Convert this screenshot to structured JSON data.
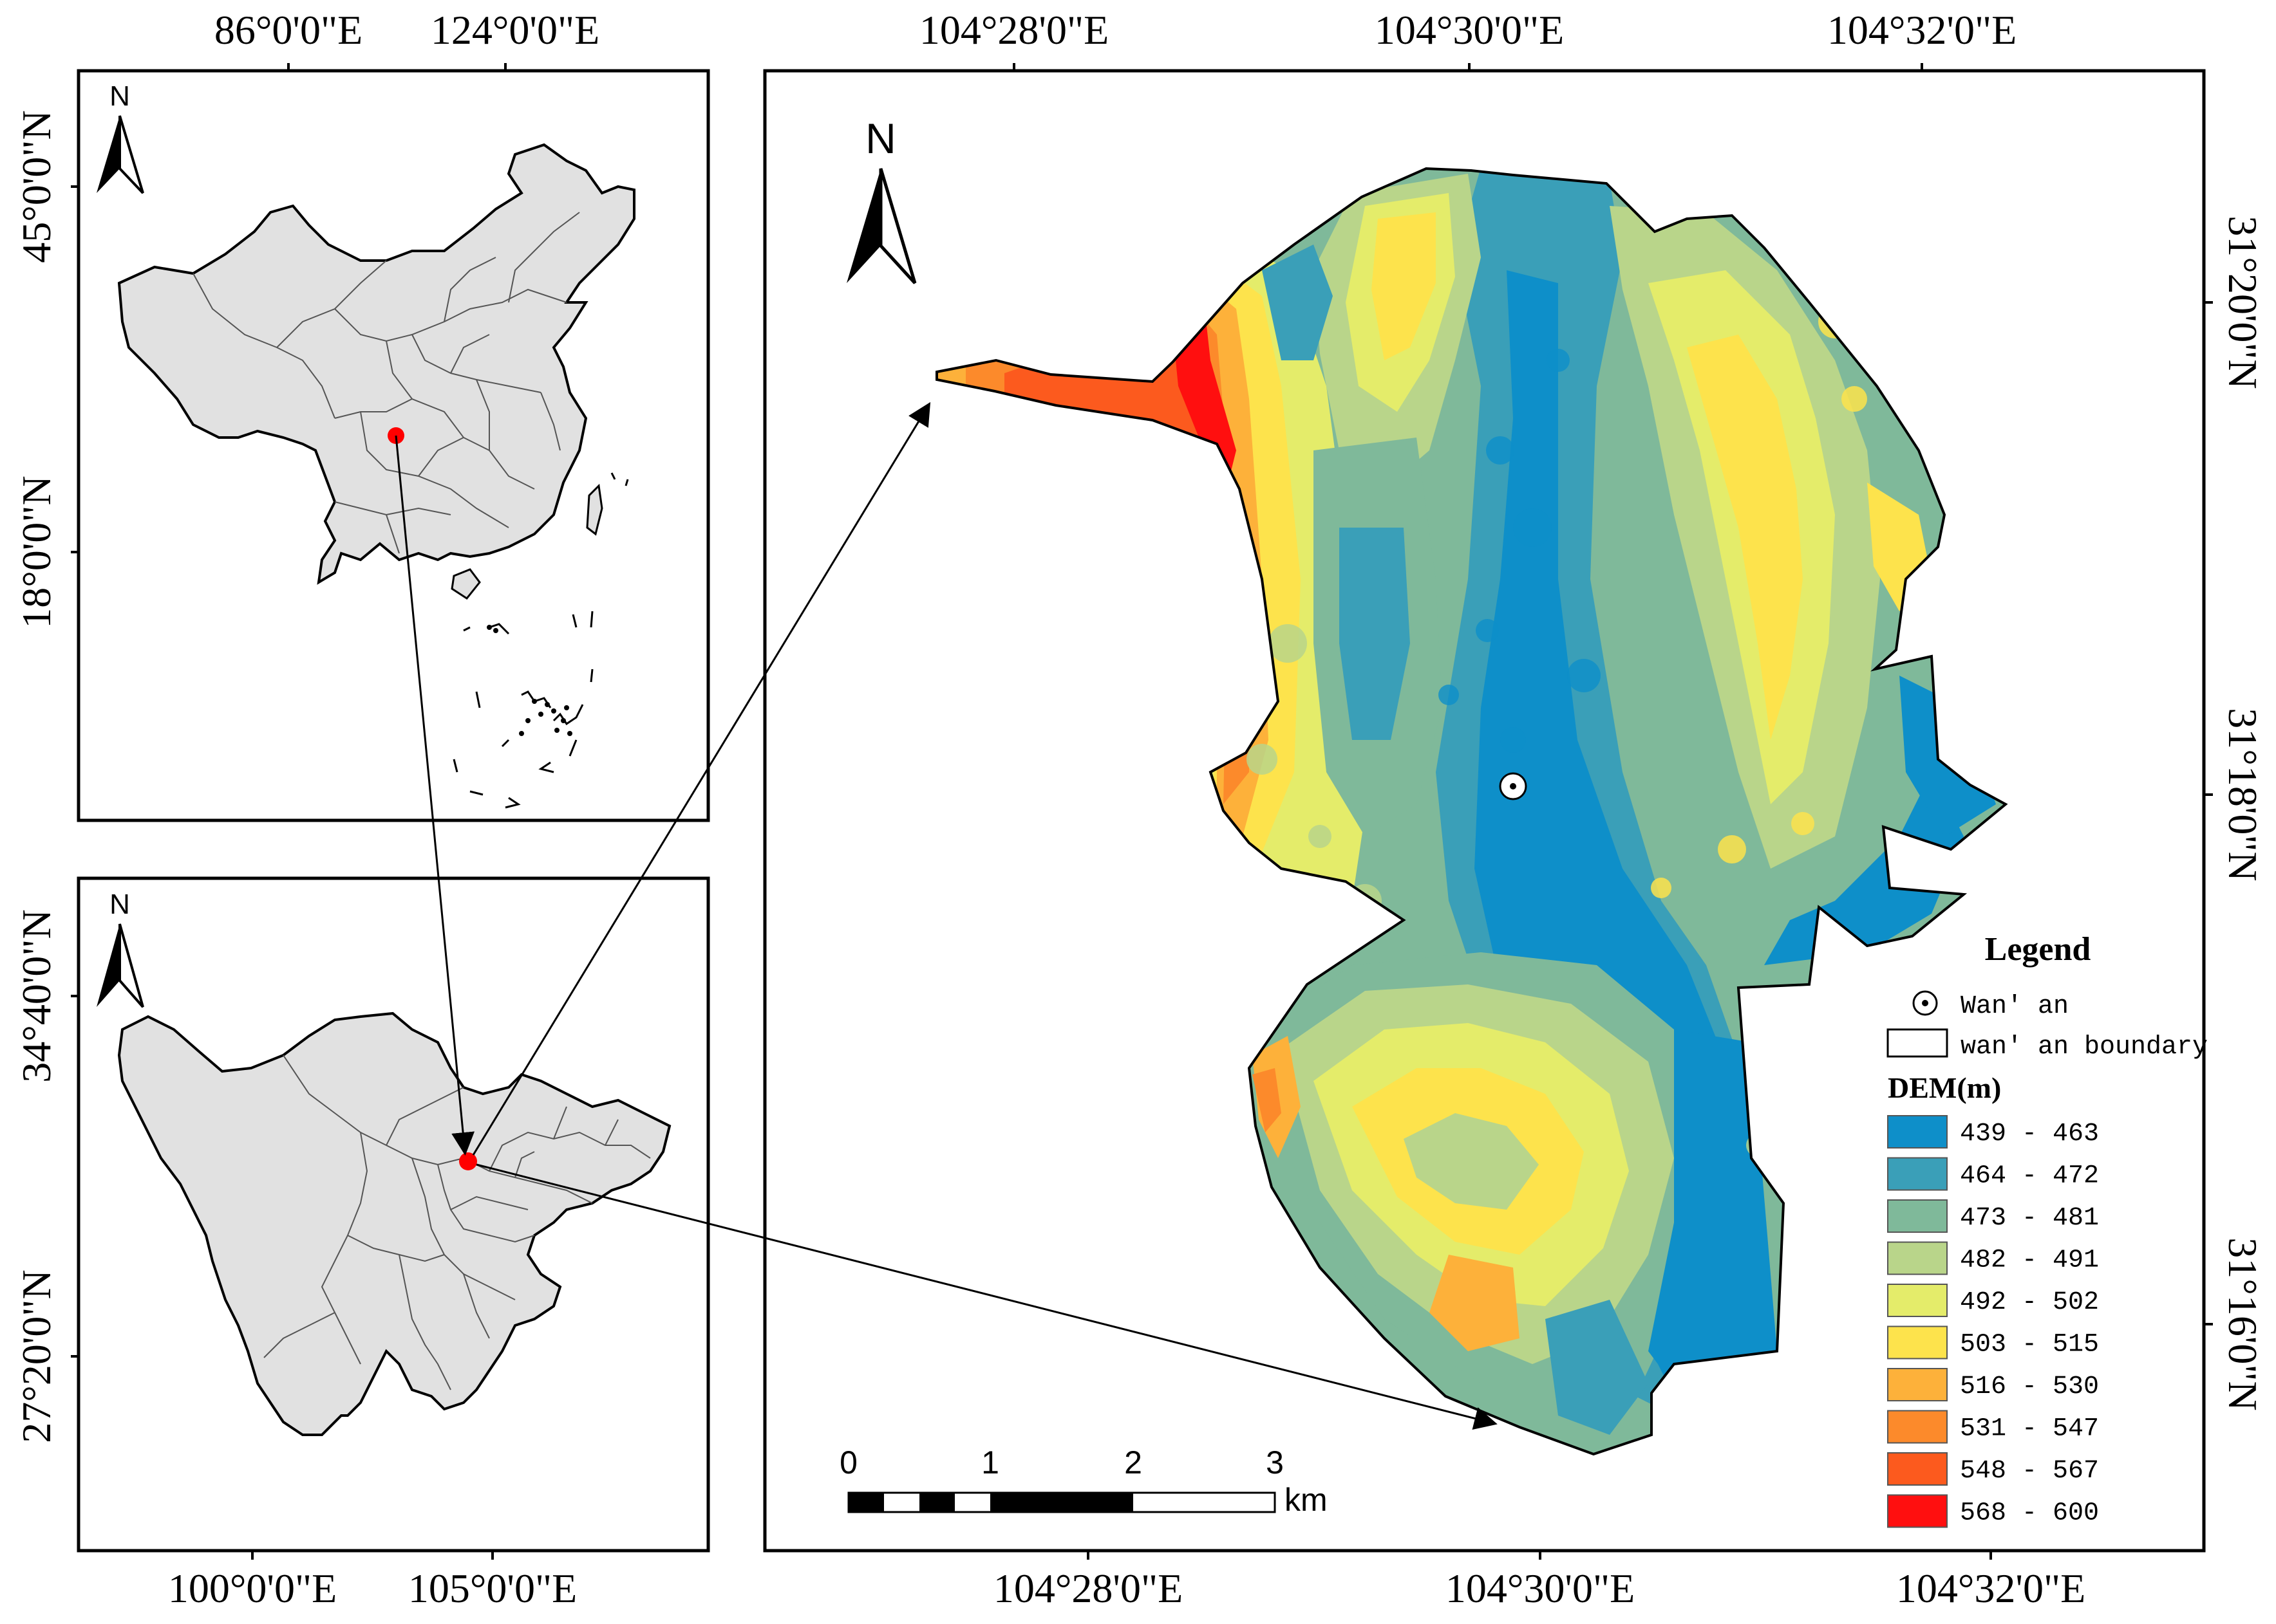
{
  "overview_map": {
    "north_label": "N",
    "top_ticks": [
      "86°0'0\"E",
      "124°0'0\"E"
    ],
    "left_ticks": [
      "45°0'0\"N",
      "18°0'0\"N"
    ],
    "location_marker_color": "#ff0000",
    "land_color": "#e1e1e1"
  },
  "province_map": {
    "north_label": "N",
    "bottom_ticks": [
      "100°0'0\"E",
      "105°0'0\"E"
    ],
    "left_ticks": [
      "34°40'0\"N",
      "27°20'0\"N"
    ],
    "location_marker_color": "#ff0000",
    "land_color": "#e1e1e1"
  },
  "main_map": {
    "north_label": "N",
    "top_ticks": [
      "104°28'0\"E",
      "104°30'0\"E",
      "104°32'0\"E"
    ],
    "bottom_ticks": [
      "104°28'0\"E",
      "104°30'0\"E",
      "104°32'0\"E"
    ],
    "right_ticks": [
      "31°20'0\"N",
      "31°18'0\"N",
      "31°16'0\"N"
    ],
    "scale_bar": {
      "labels": [
        "0",
        "1",
        "2",
        "3"
      ],
      "unit": "km"
    },
    "city_symbol": "point-in-circle-icon"
  },
  "legend": {
    "title": "Legend",
    "items": [
      {
        "label": "Wan' an",
        "symbol": "point-in-circle-icon"
      },
      {
        "label": "wan' an boundary",
        "symbol": "white-rectangle-icon"
      }
    ],
    "dem_title": "DEM(m)",
    "classes": [
      {
        "label": "439 - 463",
        "color": "#0e8fc9"
      },
      {
        "label": "464 - 472",
        "color": "#3a9fb8"
      },
      {
        "label": "473 - 481",
        "color": "#7fb99a"
      },
      {
        "label": "482 - 491",
        "color": "#b9d58a"
      },
      {
        "label": "492 - 502",
        "color": "#e4ec6a"
      },
      {
        "label": "503 - 515",
        "color": "#fde34c"
      },
      {
        "label": "516 - 530",
        "color": "#fdb13a"
      },
      {
        "label": "531 - 547",
        "color": "#fc8a2b"
      },
      {
        "label": "548 - 567",
        "color": "#fc5a1e"
      },
      {
        "label": "568 - 600",
        "color": "#ff0f0f"
      }
    ]
  }
}
